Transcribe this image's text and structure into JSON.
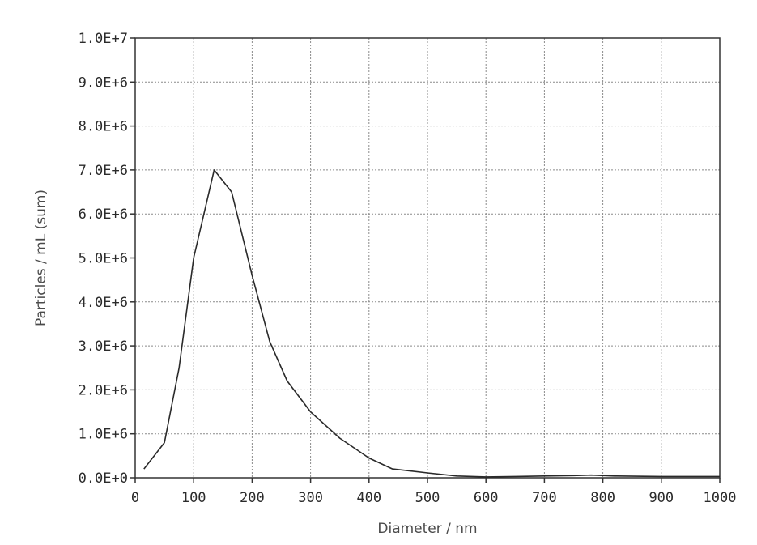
{
  "chart_data": {
    "type": "line",
    "title": "",
    "xlabel": "Diameter / nm",
    "ylabel": "Particles / mL (sum)",
    "xlim": [
      0,
      1000
    ],
    "ylim": [
      0,
      10000000
    ],
    "grid": true,
    "legend": "none",
    "x_ticks": [
      {
        "value": 0,
        "label": "0"
      },
      {
        "value": 100,
        "label": "100"
      },
      {
        "value": 200,
        "label": "200"
      },
      {
        "value": 300,
        "label": "300"
      },
      {
        "value": 400,
        "label": "400"
      },
      {
        "value": 500,
        "label": "500"
      },
      {
        "value": 600,
        "label": "600"
      },
      {
        "value": 700,
        "label": "700"
      },
      {
        "value": 800,
        "label": "800"
      },
      {
        "value": 900,
        "label": "900"
      },
      {
        "value": 1000,
        "label": "1000"
      }
    ],
    "y_ticks": [
      {
        "value": 0,
        "label": "0.0E+0"
      },
      {
        "value": 1000000,
        "label": "1.0E+6"
      },
      {
        "value": 2000000,
        "label": "2.0E+6"
      },
      {
        "value": 3000000,
        "label": "3.0E+6"
      },
      {
        "value": 4000000,
        "label": "4.0E+6"
      },
      {
        "value": 5000000,
        "label": "5.0E+6"
      },
      {
        "value": 6000000,
        "label": "6.0E+6"
      },
      {
        "value": 7000000,
        "label": "7.0E+6"
      },
      {
        "value": 8000000,
        "label": "8.0E+6"
      },
      {
        "value": 9000000,
        "label": "9.0E+6"
      },
      {
        "value": 10000000,
        "label": "1.0E+7"
      }
    ],
    "series": [
      {
        "color": "#2a2a2a",
        "x": [
          15,
          50,
          75,
          100,
          135,
          165,
          200,
          230,
          260,
          300,
          350,
          400,
          440,
          500,
          550,
          600,
          650,
          700,
          750,
          780,
          820,
          900,
          1000
        ],
        "y": [
          200000,
          800000,
          2500000,
          5000000,
          7000000,
          6500000,
          4600000,
          3100000,
          2200000,
          1500000,
          900000,
          450000,
          200000,
          110000,
          40000,
          20000,
          30000,
          40000,
          50000,
          60000,
          40000,
          30000,
          30000
        ]
      }
    ]
  }
}
